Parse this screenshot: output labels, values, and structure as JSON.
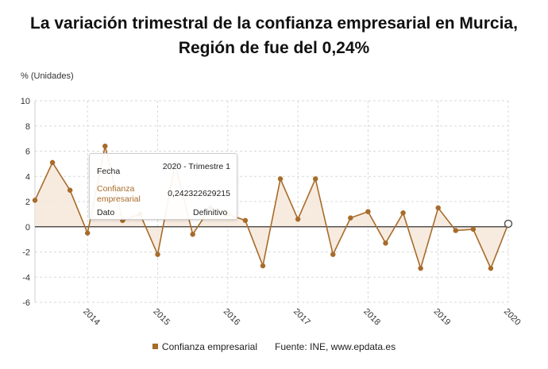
{
  "chart_data": {
    "type": "area",
    "title": "La variación trimestral de la confianza empresarial en Murcia, Región de fue del 0,24%",
    "ylabel": "% (Unidades)",
    "ylim": [
      -6,
      10
    ],
    "yticks": [
      "10",
      "8",
      "6",
      "4",
      "2",
      "0",
      "-2",
      "-4",
      "-6"
    ],
    "x_tick_labels": [
      "2014",
      "2015",
      "2016",
      "2017",
      "2018",
      "2019",
      "2020"
    ],
    "grid": true,
    "legend": "bottom",
    "series": [
      {
        "name": "Confianza empresarial",
        "color": "#a76b2a",
        "values": [
          2.1,
          5.1,
          2.9,
          -0.5,
          6.4,
          0.5,
          1.0,
          -2.2,
          5.0,
          -0.6,
          1.5,
          1.0,
          0.5,
          -3.1,
          3.8,
          0.6,
          3.8,
          -2.2,
          0.7,
          1.2,
          -1.3,
          1.1,
          -3.3,
          1.5,
          -0.3,
          -0.2,
          -3.3,
          0.24
        ]
      }
    ],
    "source": "Fuente: INE, www.epdata.es"
  },
  "tooltip": {
    "k_fecha": "Fecha",
    "v_fecha": "2020 - Trimestre 1",
    "k_serie": "Confianza empresarial",
    "v_serie": "0,242322629215",
    "k_dato": "Dato",
    "v_dato": "Definitivo"
  }
}
